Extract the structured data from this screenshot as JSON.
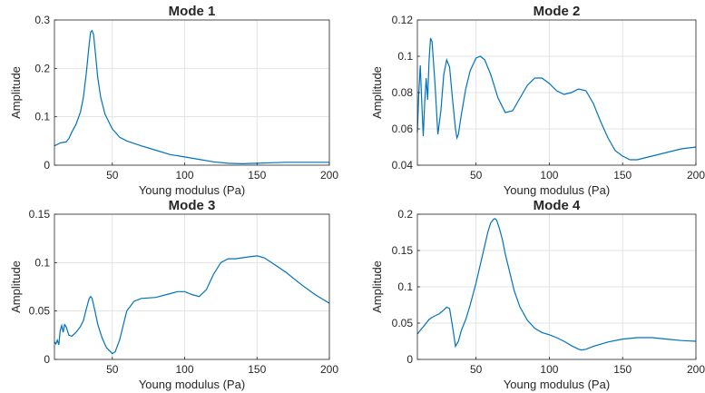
{
  "colors": {
    "line": "#0072bd",
    "grid": "#e3e3e3",
    "axis": "#262626"
  },
  "chart_data": [
    {
      "type": "line",
      "title": "Mode 1",
      "xlabel": "Young modulus (Pa)",
      "ylabel": "Amplitude",
      "xlim": [
        10,
        200
      ],
      "ylim": [
        0,
        0.3
      ],
      "xticks": [
        50,
        100,
        150,
        200
      ],
      "xtick_labels": [
        "50",
        "100",
        "150",
        "200"
      ],
      "yticks": [
        0,
        0.1,
        0.2,
        0.3
      ],
      "ytick_labels": [
        "0",
        "0.1",
        "0.2",
        "0.3"
      ],
      "grid": true,
      "series": [
        {
          "x": [
            10,
            12,
            14,
            16,
            18,
            20,
            22,
            25,
            28,
            30,
            32,
            34,
            35,
            36,
            37,
            38,
            40,
            42,
            45,
            50,
            55,
            60,
            70,
            80,
            90,
            100,
            110,
            120,
            130,
            140,
            150,
            160,
            170,
            180,
            190,
            200
          ],
          "y": [
            0.04,
            0.043,
            0.046,
            0.047,
            0.048,
            0.055,
            0.068,
            0.085,
            0.11,
            0.14,
            0.19,
            0.25,
            0.275,
            0.278,
            0.27,
            0.24,
            0.18,
            0.14,
            0.105,
            0.075,
            0.058,
            0.05,
            0.04,
            0.031,
            0.022,
            0.017,
            0.012,
            0.007,
            0.004,
            0.003,
            0.004,
            0.005,
            0.006,
            0.006,
            0.006,
            0.006
          ]
        }
      ]
    },
    {
      "type": "line",
      "title": "Mode 2",
      "xlabel": "Young modulus (Pa)",
      "ylabel": "Amplitude",
      "xlim": [
        10,
        200
      ],
      "ylim": [
        0.04,
        0.12
      ],
      "xticks": [
        50,
        100,
        150,
        200
      ],
      "xtick_labels": [
        "50",
        "100",
        "150",
        "200"
      ],
      "yticks": [
        0.04,
        0.06,
        0.08,
        0.1,
        0.12
      ],
      "ytick_labels": [
        "0.04",
        "0.06",
        "0.08",
        "0.1",
        "0.12"
      ],
      "grid": true,
      "series": [
        {
          "x": [
            10,
            11,
            12,
            13,
            14,
            15,
            16,
            17,
            18,
            19,
            20,
            22,
            24,
            26,
            28,
            30,
            32,
            34,
            36,
            37,
            38,
            40,
            43,
            46,
            50,
            53,
            56,
            60,
            65,
            70,
            75,
            80,
            85,
            90,
            95,
            100,
            105,
            110,
            115,
            120,
            125,
            130,
            135,
            140,
            145,
            150,
            155,
            160,
            165,
            170,
            180,
            190,
            200
          ],
          "y": [
            0.058,
            0.08,
            0.095,
            0.075,
            0.056,
            0.075,
            0.088,
            0.076,
            0.098,
            0.11,
            0.108,
            0.085,
            0.057,
            0.07,
            0.09,
            0.098,
            0.094,
            0.076,
            0.06,
            0.055,
            0.057,
            0.068,
            0.082,
            0.092,
            0.099,
            0.1,
            0.098,
            0.09,
            0.077,
            0.069,
            0.07,
            0.077,
            0.084,
            0.088,
            0.088,
            0.085,
            0.081,
            0.079,
            0.08,
            0.082,
            0.081,
            0.074,
            0.064,
            0.055,
            0.048,
            0.045,
            0.043,
            0.043,
            0.044,
            0.045,
            0.047,
            0.049,
            0.05
          ]
        }
      ]
    },
    {
      "type": "line",
      "title": "Mode 3",
      "xlabel": "Young modulus (Pa)",
      "ylabel": "Amplitude",
      "xlim": [
        10,
        200
      ],
      "ylim": [
        0,
        0.15
      ],
      "xticks": [
        50,
        100,
        150,
        200
      ],
      "xtick_labels": [
        "50",
        "100",
        "150",
        "200"
      ],
      "yticks": [
        0,
        0.05,
        0.1,
        0.15
      ],
      "ytick_labels": [
        "0",
        "0.05",
        "0.1",
        "0.15"
      ],
      "grid": true,
      "series": [
        {
          "x": [
            10,
            11,
            12,
            13,
            14,
            15,
            16,
            17,
            18,
            20,
            22,
            25,
            28,
            30,
            32,
            34,
            35,
            36,
            38,
            40,
            43,
            46,
            50,
            52,
            55,
            58,
            60,
            65,
            70,
            80,
            90,
            95,
            100,
            105,
            110,
            115,
            120,
            125,
            130,
            135,
            140,
            145,
            150,
            155,
            160,
            170,
            180,
            190,
            200
          ],
          "y": [
            0.018,
            0.016,
            0.02,
            0.015,
            0.03,
            0.035,
            0.028,
            0.036,
            0.034,
            0.025,
            0.024,
            0.028,
            0.034,
            0.04,
            0.052,
            0.063,
            0.065,
            0.063,
            0.05,
            0.036,
            0.022,
            0.012,
            0.006,
            0.008,
            0.02,
            0.038,
            0.05,
            0.06,
            0.063,
            0.064,
            0.068,
            0.07,
            0.07,
            0.067,
            0.065,
            0.072,
            0.088,
            0.1,
            0.104,
            0.104,
            0.105,
            0.106,
            0.107,
            0.105,
            0.1,
            0.09,
            0.078,
            0.067,
            0.058
          ]
        }
      ]
    },
    {
      "type": "line",
      "title": "Mode 4",
      "xlabel": "Young modulus (Pa)",
      "ylabel": "Amplitude",
      "xlim": [
        10,
        200
      ],
      "ylim": [
        0,
        0.2
      ],
      "xticks": [
        50,
        100,
        150,
        200
      ],
      "xtick_labels": [
        "50",
        "100",
        "150",
        "200"
      ],
      "yticks": [
        0,
        0.05,
        0.1,
        0.15,
        0.2
      ],
      "ytick_labels": [
        "0",
        "0.05",
        "0.1",
        "0.15",
        "0.2"
      ],
      "grid": true,
      "series": [
        {
          "x": [
            10,
            12,
            14,
            16,
            18,
            20,
            22,
            25,
            28,
            30,
            32,
            34,
            36,
            38,
            40,
            43,
            46,
            50,
            54,
            58,
            60,
            62,
            63,
            64,
            66,
            68,
            70,
            73,
            76,
            80,
            85,
            90,
            95,
            100,
            105,
            110,
            115,
            120,
            122,
            125,
            130,
            140,
            150,
            160,
            170,
            180,
            190,
            200
          ],
          "y": [
            0.035,
            0.04,
            0.045,
            0.05,
            0.055,
            0.058,
            0.06,
            0.063,
            0.068,
            0.072,
            0.07,
            0.045,
            0.018,
            0.025,
            0.04,
            0.055,
            0.075,
            0.105,
            0.14,
            0.175,
            0.188,
            0.193,
            0.194,
            0.192,
            0.18,
            0.165,
            0.145,
            0.12,
            0.095,
            0.072,
            0.054,
            0.043,
            0.037,
            0.034,
            0.03,
            0.025,
            0.019,
            0.014,
            0.013,
            0.014,
            0.018,
            0.024,
            0.028,
            0.03,
            0.03,
            0.028,
            0.026,
            0.025
          ]
        }
      ]
    }
  ]
}
